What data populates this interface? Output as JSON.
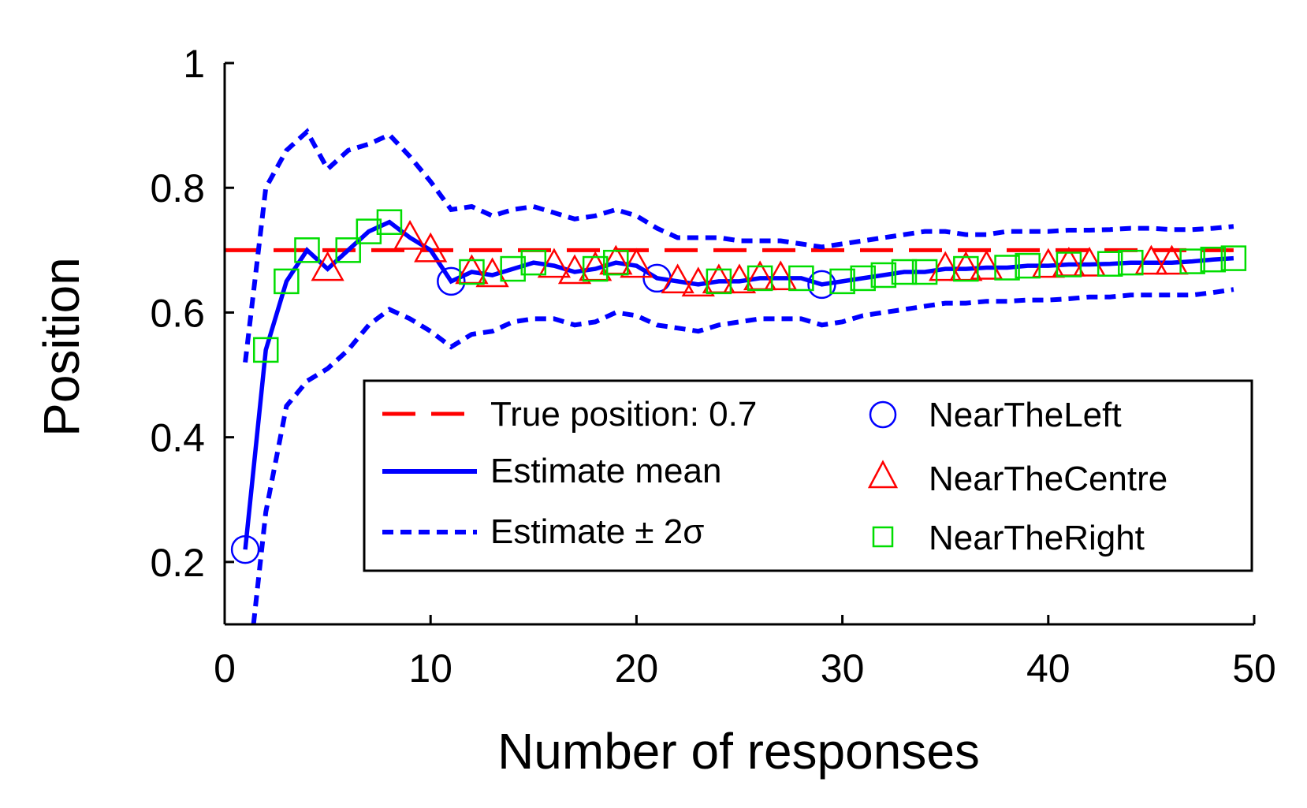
{
  "chart_data": {
    "type": "line",
    "xlabel": "Number of responses",
    "ylabel": "Position",
    "xlim": [
      0,
      50
    ],
    "ylim": [
      0.1,
      1.0
    ],
    "xticks": [
      0,
      10,
      20,
      30,
      40,
      50
    ],
    "yticks": [
      0.2,
      0.4,
      0.6,
      0.8,
      1
    ],
    "xtick_labels": [
      "0",
      "10",
      "20",
      "30",
      "40",
      "50"
    ],
    "ytick_labels": [
      "0.2",
      "0.4",
      "0.6",
      "0.8",
      "1"
    ],
    "grid": false,
    "legend_position": "lower-right",
    "true_position": {
      "name": "True position: 0.7",
      "value": 0.7,
      "color": "#ff0000",
      "style": "dashed"
    },
    "estimate_mean": {
      "name": "Estimate mean",
      "color": "#0000ff",
      "x": [
        1,
        2,
        3,
        4,
        5,
        6,
        7,
        8,
        9,
        10,
        11,
        12,
        13,
        14,
        15,
        16,
        17,
        18,
        19,
        20,
        21,
        22,
        23,
        24,
        25,
        26,
        27,
        28,
        29,
        30,
        31,
        32,
        33,
        34,
        35,
        36,
        37,
        38,
        39,
        40,
        41,
        42,
        43,
        44,
        45,
        46,
        47,
        48,
        49
      ],
      "y": [
        0.22,
        0.54,
        0.65,
        0.7,
        0.67,
        0.7,
        0.73,
        0.745,
        0.72,
        0.7,
        0.65,
        0.665,
        0.66,
        0.67,
        0.68,
        0.675,
        0.665,
        0.67,
        0.68,
        0.675,
        0.655,
        0.65,
        0.645,
        0.65,
        0.65,
        0.655,
        0.655,
        0.655,
        0.645,
        0.65,
        0.655,
        0.66,
        0.665,
        0.665,
        0.67,
        0.67,
        0.672,
        0.672,
        0.675,
        0.675,
        0.677,
        0.677,
        0.678,
        0.68,
        0.68,
        0.68,
        0.682,
        0.685,
        0.687
      ]
    },
    "estimate_upper": {
      "name": "Estimate ± 2σ",
      "color": "#0000ff",
      "style": "dotted",
      "x": [
        1,
        2,
        3,
        4,
        5,
        6,
        7,
        8,
        9,
        10,
        11,
        12,
        13,
        14,
        15,
        16,
        17,
        18,
        19,
        20,
        21,
        22,
        23,
        24,
        25,
        26,
        27,
        28,
        29,
        30,
        31,
        32,
        33,
        34,
        35,
        36,
        37,
        38,
        39,
        40,
        41,
        42,
        43,
        44,
        45,
        46,
        47,
        48,
        49
      ],
      "y": [
        0.52,
        0.8,
        0.86,
        0.89,
        0.83,
        0.86,
        0.87,
        0.885,
        0.85,
        0.81,
        0.765,
        0.77,
        0.755,
        0.765,
        0.77,
        0.76,
        0.75,
        0.755,
        0.765,
        0.755,
        0.735,
        0.72,
        0.72,
        0.72,
        0.715,
        0.715,
        0.715,
        0.71,
        0.705,
        0.71,
        0.715,
        0.72,
        0.725,
        0.73,
        0.73,
        0.725,
        0.725,
        0.73,
        0.73,
        0.73,
        0.732,
        0.732,
        0.733,
        0.735,
        0.735,
        0.733,
        0.733,
        0.735,
        0.738
      ]
    },
    "estimate_lower": {
      "name": "",
      "color": "#0000ff",
      "style": "dotted",
      "x": [
        1.4,
        2,
        3,
        4,
        5,
        6,
        7,
        8,
        9,
        10,
        11,
        12,
        13,
        14,
        15,
        16,
        17,
        18,
        19,
        20,
        21,
        22,
        23,
        24,
        25,
        26,
        27,
        28,
        29,
        30,
        31,
        32,
        33,
        34,
        35,
        36,
        37,
        38,
        39,
        40,
        41,
        42,
        43,
        44,
        45,
        46,
        47,
        48,
        49
      ],
      "y": [
        0.1,
        0.28,
        0.45,
        0.49,
        0.51,
        0.54,
        0.58,
        0.605,
        0.59,
        0.57,
        0.545,
        0.565,
        0.57,
        0.585,
        0.59,
        0.59,
        0.58,
        0.585,
        0.6,
        0.595,
        0.58,
        0.575,
        0.57,
        0.58,
        0.585,
        0.59,
        0.59,
        0.59,
        0.58,
        0.585,
        0.595,
        0.6,
        0.605,
        0.61,
        0.615,
        0.615,
        0.618,
        0.618,
        0.62,
        0.62,
        0.622,
        0.625,
        0.625,
        0.628,
        0.628,
        0.628,
        0.628,
        0.632,
        0.637
      ]
    },
    "markers": [
      {
        "name": "NearTheLeft",
        "shape": "circle",
        "color": "#0000ff",
        "x": [
          1,
          11,
          21,
          29
        ],
        "y": [
          0.22,
          0.65,
          0.655,
          0.645
        ]
      },
      {
        "name": "NearTheCentre",
        "shape": "triangle",
        "color": "#ff0000",
        "x": [
          5,
          9,
          10,
          12,
          13,
          16,
          17,
          18,
          19,
          20,
          22,
          23,
          24,
          25,
          26,
          27,
          35,
          36,
          37,
          40,
          41,
          42,
          45,
          46
        ],
        "y": [
          0.67,
          0.72,
          0.7,
          0.665,
          0.66,
          0.675,
          0.665,
          0.67,
          0.68,
          0.675,
          0.65,
          0.645,
          0.65,
          0.65,
          0.655,
          0.655,
          0.67,
          0.67,
          0.672,
          0.675,
          0.677,
          0.677,
          0.68,
          0.68
        ]
      },
      {
        "name": "NearTheRight",
        "shape": "square",
        "color": "#00dd00",
        "x": [
          2,
          3,
          4,
          6,
          7,
          8,
          12,
          14,
          15,
          18,
          19,
          24,
          26,
          28,
          30,
          31,
          32,
          33,
          34,
          36,
          38,
          39,
          41,
          43,
          44,
          47,
          48,
          49
        ],
        "y": [
          0.54,
          0.65,
          0.7,
          0.7,
          0.73,
          0.745,
          0.665,
          0.67,
          0.68,
          0.67,
          0.68,
          0.65,
          0.655,
          0.655,
          0.65,
          0.655,
          0.66,
          0.665,
          0.665,
          0.67,
          0.672,
          0.675,
          0.677,
          0.678,
          0.68,
          0.682,
          0.685,
          0.687
        ]
      }
    ]
  }
}
